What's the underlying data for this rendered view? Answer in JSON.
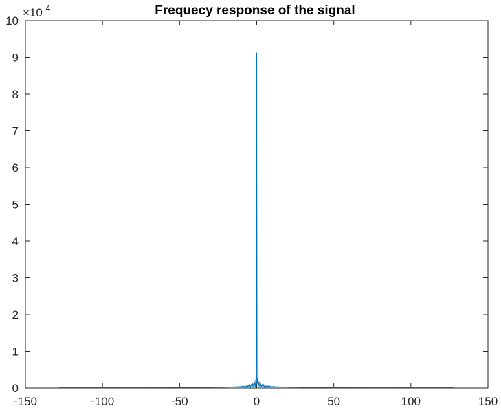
{
  "chart_data": {
    "type": "line",
    "title": "Frequecy response of the signal",
    "xlabel": "",
    "ylabel": "",
    "xlim": [
      -150,
      150
    ],
    "ylim": [
      0,
      100000
    ],
    "y_exponent_label": "×10",
    "y_exponent_power": "4",
    "x_ticks": [
      -150,
      -100,
      -50,
      0,
      50,
      100,
      150
    ],
    "x_tick_labels": [
      "-150",
      "-100",
      "-50",
      "0",
      "50",
      "100",
      "150"
    ],
    "y_ticks": [
      0,
      10000,
      20000,
      30000,
      40000,
      50000,
      60000,
      70000,
      80000,
      90000,
      100000
    ],
    "y_tick_labels": [
      "0",
      "1",
      "2",
      "3",
      "4",
      "5",
      "6",
      "7",
      "8",
      "9",
      "10"
    ],
    "grid": false,
    "line_color": "#0072BD",
    "series": [
      {
        "x_range": [
          -128,
          128
        ],
        "peak": {
          "x": 0,
          "y": 91300
        },
        "baseline": 100
      }
    ]
  }
}
